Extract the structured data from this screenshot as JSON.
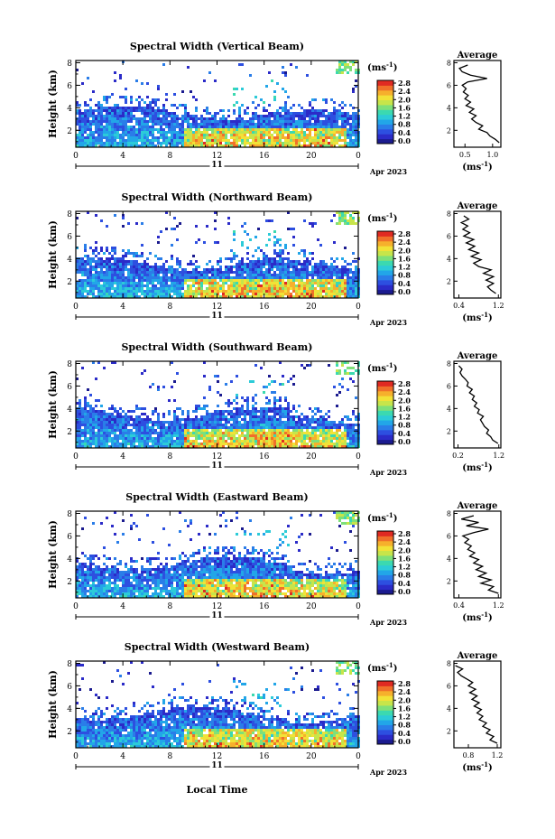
{
  "figure": {
    "xlabel": "Local Time",
    "date_label": "Apr 2023",
    "day_label": "11",
    "ylabel": "Height (km)",
    "unit_label": "(ms",
    "unit_exp": "-1",
    "average_title": "Average",
    "avg_xlabel": "(ms",
    "colors": [
      "#1b1b8f",
      "#2b2bc8",
      "#2d4fe0",
      "#2a7de8",
      "#22a6e8",
      "#2ccbd8",
      "#3bd9b0",
      "#7ee07a",
      "#c7e54a",
      "#f2e237",
      "#f6b02c",
      "#f0702a",
      "#e02a22"
    ],
    "panels": [
      {
        "title": "Spectral Width (Vertical Beam)",
        "colorbar_ticks": [
          "0.0",
          "0.4",
          "0.8",
          "1.2",
          "1.6",
          "2.0",
          "2.4",
          "2.8"
        ],
        "avg_ticks": [
          "0.5",
          "1.0"
        ],
        "avg_xlim": [
          0.3,
          1.15
        ],
        "avg_profile": [
          [
            0.9,
            1.12
          ],
          [
            1.2,
            1.05
          ],
          [
            1.5,
            0.95
          ],
          [
            1.8,
            0.9
          ],
          [
            2.1,
            0.75
          ],
          [
            2.4,
            0.82
          ],
          [
            2.7,
            0.7
          ],
          [
            3.0,
            0.62
          ],
          [
            3.3,
            0.7
          ],
          [
            3.6,
            0.58
          ],
          [
            3.9,
            0.66
          ],
          [
            4.2,
            0.52
          ],
          [
            4.5,
            0.6
          ],
          [
            4.8,
            0.5
          ],
          [
            5.1,
            0.56
          ],
          [
            5.4,
            0.47
          ],
          [
            5.7,
            0.52
          ],
          [
            6.0,
            0.45
          ],
          [
            6.3,
            0.55
          ],
          [
            6.6,
            0.9
          ],
          [
            6.9,
            0.6
          ],
          [
            7.2,
            0.45
          ],
          [
            7.5,
            0.4
          ],
          [
            7.8,
            0.55
          ]
        ]
      },
      {
        "title": "Spectral Width (Northward Beam)",
        "colorbar_ticks": [
          "0.0",
          "0.4",
          "0.8",
          "1.2",
          "1.6",
          "2.0",
          "2.4",
          "2.8"
        ],
        "avg_ticks": [
          "0.4",
          "1.2"
        ],
        "avg_xlim": [
          0.3,
          1.25
        ],
        "avg_profile": [
          [
            0.9,
            1.15
          ],
          [
            1.2,
            1.05
          ],
          [
            1.5,
            0.98
          ],
          [
            1.8,
            1.1
          ],
          [
            2.1,
            0.95
          ],
          [
            2.4,
            1.1
          ],
          [
            2.7,
            0.9
          ],
          [
            3.0,
            1.05
          ],
          [
            3.3,
            0.8
          ],
          [
            3.6,
            0.7
          ],
          [
            3.9,
            0.85
          ],
          [
            4.2,
            0.65
          ],
          [
            4.5,
            0.8
          ],
          [
            4.8,
            0.6
          ],
          [
            5.1,
            0.72
          ],
          [
            5.4,
            0.55
          ],
          [
            5.7,
            0.7
          ],
          [
            6.0,
            0.5
          ],
          [
            6.3,
            0.62
          ],
          [
            6.6,
            0.48
          ],
          [
            6.9,
            0.58
          ],
          [
            7.2,
            0.45
          ],
          [
            7.5,
            0.6
          ],
          [
            7.8,
            0.5
          ]
        ]
      },
      {
        "title": "Spectral Width (Southward Beam)",
        "colorbar_ticks": [
          "0.0",
          "0.4",
          "0.8",
          "1.2",
          "1.6",
          "2.0",
          "2.4",
          "2.8"
        ],
        "avg_ticks": [
          "0.2",
          "1.2"
        ],
        "avg_xlim": [
          0.1,
          1.25
        ],
        "avg_profile": [
          [
            0.9,
            1.18
          ],
          [
            1.2,
            1.05
          ],
          [
            1.5,
            1.0
          ],
          [
            1.8,
            0.9
          ],
          [
            2.1,
            0.95
          ],
          [
            2.4,
            0.85
          ],
          [
            2.7,
            0.8
          ],
          [
            3.0,
            0.75
          ],
          [
            3.3,
            0.82
          ],
          [
            3.6,
            0.68
          ],
          [
            3.9,
            0.72
          ],
          [
            4.2,
            0.6
          ],
          [
            4.5,
            0.66
          ],
          [
            4.8,
            0.55
          ],
          [
            5.1,
            0.6
          ],
          [
            5.4,
            0.48
          ],
          [
            5.7,
            0.55
          ],
          [
            6.0,
            0.42
          ],
          [
            6.3,
            0.45
          ],
          [
            6.6,
            0.38
          ],
          [
            6.9,
            0.3
          ],
          [
            7.2,
            0.25
          ],
          [
            7.5,
            0.3
          ],
          [
            7.8,
            0.22
          ]
        ]
      },
      {
        "title": "Spectral Width (Eastward Beam)",
        "colorbar_ticks": [
          "0.0",
          "0.4",
          "0.8",
          "1.2",
          "1.6",
          "2.0",
          "2.4",
          "2.8"
        ],
        "avg_ticks": [
          "0.4",
          "1.2"
        ],
        "avg_xlim": [
          0.3,
          1.25
        ],
        "avg_profile": [
          [
            0.9,
            1.2
          ],
          [
            1.2,
            1.0
          ],
          [
            1.5,
            1.1
          ],
          [
            1.8,
            0.85
          ],
          [
            2.1,
            1.05
          ],
          [
            2.4,
            0.8
          ],
          [
            2.7,
            0.95
          ],
          [
            3.0,
            0.75
          ],
          [
            3.3,
            0.88
          ],
          [
            3.6,
            0.7
          ],
          [
            3.9,
            0.8
          ],
          [
            4.2,
            0.62
          ],
          [
            4.5,
            0.72
          ],
          [
            4.8,
            0.58
          ],
          [
            5.1,
            0.65
          ],
          [
            5.4,
            0.52
          ],
          [
            5.7,
            0.6
          ],
          [
            6.0,
            0.48
          ],
          [
            6.3,
            0.7
          ],
          [
            6.6,
            1.0
          ],
          [
            6.9,
            0.55
          ],
          [
            7.2,
            0.8
          ],
          [
            7.5,
            0.45
          ],
          [
            7.8,
            0.7
          ]
        ]
      },
      {
        "title": "Spectral Width (Westward Beam)",
        "colorbar_ticks": [
          "0.0",
          "0.4",
          "0.8",
          "1.2",
          "1.6",
          "2.0",
          "2.4",
          "2.8"
        ],
        "avg_ticks": [
          "0.8",
          "1.2"
        ],
        "avg_xlim": [
          0.6,
          1.25
        ],
        "avg_profile": [
          [
            0.9,
            1.2
          ],
          [
            1.2,
            1.1
          ],
          [
            1.5,
            1.15
          ],
          [
            1.8,
            1.05
          ],
          [
            2.1,
            1.1
          ],
          [
            2.4,
            1.0
          ],
          [
            2.7,
            1.05
          ],
          [
            3.0,
            0.95
          ],
          [
            3.3,
            1.0
          ],
          [
            3.6,
            0.92
          ],
          [
            3.9,
            0.98
          ],
          [
            4.2,
            0.88
          ],
          [
            4.5,
            0.95
          ],
          [
            4.8,
            0.85
          ],
          [
            5.1,
            0.92
          ],
          [
            5.4,
            0.82
          ],
          [
            5.7,
            0.9
          ],
          [
            6.0,
            0.8
          ],
          [
            6.3,
            0.86
          ],
          [
            6.6,
            0.78
          ],
          [
            6.9,
            0.7
          ],
          [
            7.2,
            0.65
          ],
          [
            7.5,
            0.72
          ],
          [
            7.8,
            0.62
          ]
        ]
      }
    ]
  },
  "chart_data": {
    "type": "heatmap",
    "xlabel": "Local Time",
    "ylabel": "Height (km)",
    "xlim": [
      0,
      24
    ],
    "ylim": [
      0.5,
      8.2
    ],
    "x_ticks": [
      "0",
      "4",
      "8",
      "12",
      "16",
      "20",
      "0"
    ],
    "y_ticks": [
      "2",
      "4",
      "6",
      "8"
    ],
    "colorbar_range": [
      0.0,
      2.8
    ],
    "date": "Apr 2023",
    "day": "11"
  }
}
